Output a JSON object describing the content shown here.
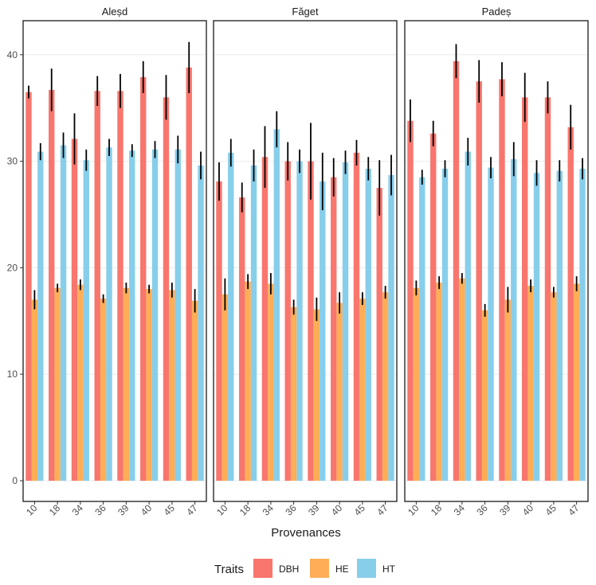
{
  "chart_data": {
    "type": "bar",
    "xlabel": "Provenances",
    "ylabel": "",
    "ylim": [
      0,
      42
    ],
    "yticks": [
      0,
      10,
      20,
      30,
      40
    ],
    "grid": true,
    "legend": {
      "title": "Traits",
      "position": "bottom",
      "entries": [
        {
          "name": "DBH",
          "color": "#F8766D"
        },
        {
          "name": "HE",
          "color": "#FFAE57"
        },
        {
          "name": "HT",
          "color": "#87CEEB"
        }
      ]
    },
    "categories": [
      "10",
      "18",
      "34",
      "36",
      "39",
      "40",
      "45",
      "47"
    ],
    "panels": [
      {
        "title": "Aleșd",
        "series": [
          {
            "name": "DBH",
            "values": [
              36.5,
              36.7,
              32.1,
              36.6,
              36.6,
              37.9,
              36.0,
              38.8
            ],
            "errors": [
              0.6,
              2.0,
              2.4,
              1.4,
              1.6,
              1.5,
              2.1,
              2.4
            ]
          },
          {
            "name": "HE",
            "values": [
              17.0,
              18.1,
              18.4,
              17.1,
              18.1,
              18.0,
              17.9,
              16.9
            ],
            "errors": [
              0.9,
              0.4,
              0.5,
              0.4,
              0.5,
              0.4,
              0.7,
              1.1
            ]
          },
          {
            "name": "HT",
            "values": [
              30.9,
              31.5,
              30.1,
              31.3,
              31.0,
              31.1,
              31.1,
              29.6
            ],
            "errors": [
              0.8,
              1.2,
              1.0,
              0.8,
              0.6,
              0.8,
              1.3,
              1.3
            ]
          }
        ]
      },
      {
        "title": "Făget",
        "series": [
          {
            "name": "DBH",
            "values": [
              28.1,
              26.6,
              30.4,
              30.0,
              30.0,
              28.5,
              30.8,
              27.5
            ],
            "errors": [
              1.8,
              1.4,
              2.9,
              1.8,
              3.6,
              1.8,
              1.2,
              2.6
            ]
          },
          {
            "name": "HE",
            "values": [
              17.5,
              18.7,
              18.5,
              16.3,
              16.1,
              16.7,
              17.1,
              17.7
            ],
            "errors": [
              1.5,
              0.7,
              1.0,
              0.7,
              1.1,
              1.0,
              0.6,
              0.6
            ]
          },
          {
            "name": "HT",
            "values": [
              30.8,
              29.6,
              33.0,
              30.0,
              28.1,
              29.9,
              29.3,
              28.7
            ],
            "errors": [
              1.3,
              1.5,
              1.7,
              1.1,
              2.7,
              1.1,
              1.1,
              1.9
            ]
          }
        ]
      },
      {
        "title": "Padeș",
        "series": [
          {
            "name": "DBH",
            "values": [
              33.8,
              32.6,
              39.4,
              37.5,
              37.7,
              36.0,
              36.0,
              33.2
            ],
            "errors": [
              2.0,
              1.2,
              1.6,
              2.0,
              1.6,
              2.3,
              1.5,
              2.1
            ]
          },
          {
            "name": "HE",
            "values": [
              18.1,
              18.6,
              19.0,
              16.0,
              17.0,
              18.3,
              17.7,
              18.5
            ],
            "errors": [
              0.7,
              0.6,
              0.5,
              0.6,
              1.2,
              0.6,
              0.5,
              0.7
            ]
          },
          {
            "name": "HT",
            "values": [
              28.5,
              29.3,
              30.9,
              29.4,
              30.2,
              28.9,
              29.1,
              29.3
            ],
            "errors": [
              0.7,
              0.8,
              1.3,
              1.0,
              1.6,
              1.2,
              1.0,
              1.0
            ]
          }
        ]
      }
    ]
  }
}
